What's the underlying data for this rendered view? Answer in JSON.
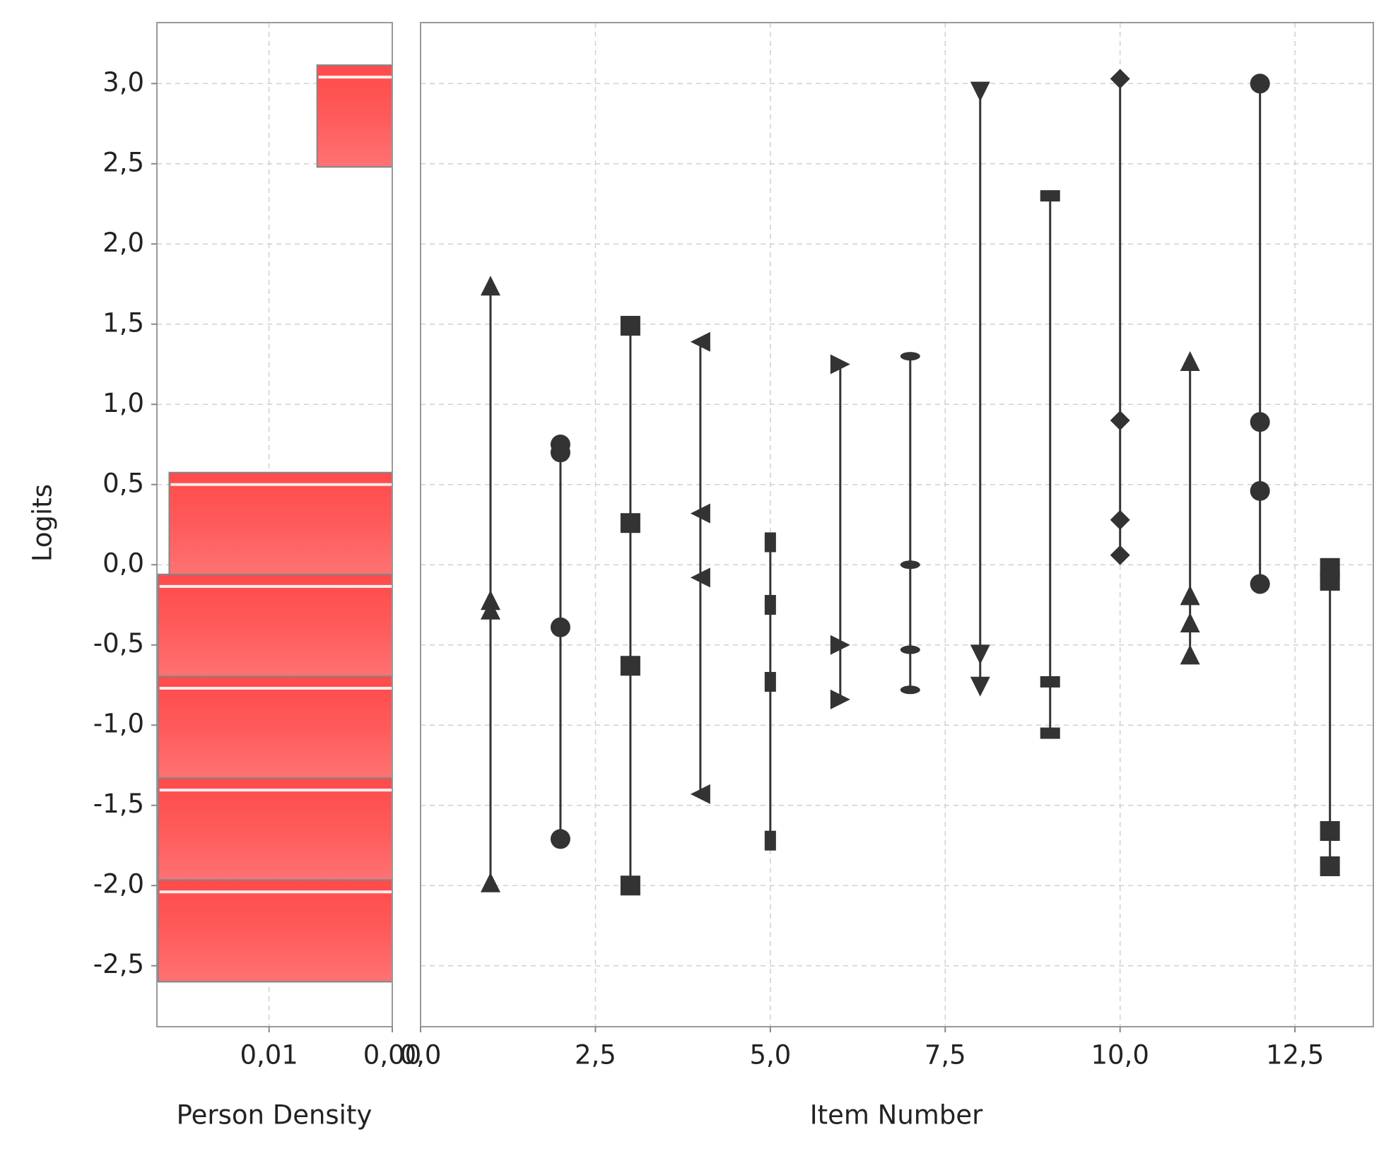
{
  "chart_data": [
    {
      "type": "histogram",
      "orientation": "horizontal",
      "xlabel": "Person Density",
      "ylabel": "Logits",
      "bins": [
        -2.6,
        -1.965,
        -1.33,
        -0.695,
        -0.06,
        0.575,
        1.21,
        1.845,
        2.48,
        3.115
      ],
      "values": [
        0.019,
        0.019,
        0.019,
        0.019,
        0.0181,
        0,
        0,
        0,
        0.0061
      ],
      "color": "#ff5555",
      "xlim": [
        0.0191,
        0
      ],
      "xticks": [
        {
          "value": 0.01,
          "label": "0,01"
        },
        {
          "value": 0,
          "label": "0,00"
        }
      ],
      "ylim": [
        -2.88,
        3.38
      ],
      "yticks": [
        {
          "value": -2.5,
          "label": "-2,5"
        },
        {
          "value": -2,
          "label": "-2,0"
        },
        {
          "value": -1.5,
          "label": "-1,5"
        },
        {
          "value": -1,
          "label": "-1,0"
        },
        {
          "value": -0.5,
          "label": "-0,5"
        },
        {
          "value": 0,
          "label": "0,0"
        },
        {
          "value": 0.5,
          "label": "0,5"
        },
        {
          "value": 1,
          "label": "1,0"
        },
        {
          "value": 1.5,
          "label": "1,5"
        },
        {
          "value": 2,
          "label": "2,0"
        },
        {
          "value": 2.5,
          "label": "2,5"
        },
        {
          "value": 3,
          "label": "3,0"
        }
      ],
      "grid": true
    },
    {
      "type": "range-dot",
      "xlabel": "Item Number",
      "color": "#333333",
      "xlim": [
        0,
        13.62
      ],
      "xticks": [
        {
          "value": 0,
          "label": "0,0"
        },
        {
          "value": 2.5,
          "label": "2,5"
        },
        {
          "value": 5,
          "label": "5,0"
        },
        {
          "value": 7.5,
          "label": "7,5"
        },
        {
          "value": 10,
          "label": "10,0"
        },
        {
          "value": 12.5,
          "label": "12,5"
        }
      ],
      "ylim": [
        -2.88,
        3.38
      ],
      "yticks": [
        -2.5,
        -2,
        -1.5,
        -1,
        -0.5,
        0,
        0.5,
        1,
        1.5,
        2,
        2.5,
        3
      ],
      "grid": true,
      "series": [
        {
          "x": 1,
          "marker": "triangle-up",
          "values": [
            1.74,
            -0.22,
            -0.28,
            -1.98
          ]
        },
        {
          "x": 2,
          "marker": "circle",
          "values": [
            0.75,
            0.7,
            -0.39,
            -1.71
          ]
        },
        {
          "x": 3,
          "marker": "square",
          "values": [
            1.49,
            0.26,
            -0.63,
            -2.0
          ]
        },
        {
          "x": 4,
          "marker": "triangle-left",
          "values": [
            1.39,
            0.32,
            -0.08,
            -1.43
          ]
        },
        {
          "x": 5,
          "marker": "square-narrow",
          "values": [
            0.14,
            -0.25,
            -0.73,
            -1.72
          ]
        },
        {
          "x": 6,
          "marker": "triangle-right",
          "values": [
            1.25,
            -0.5,
            -0.84
          ]
        },
        {
          "x": 7,
          "marker": "ellipse",
          "values": [
            1.3,
            0.0,
            -0.53,
            -0.78
          ]
        },
        {
          "x": 8,
          "marker": "triangle-down",
          "values": [
            2.95,
            -0.56,
            -0.76
          ]
        },
        {
          "x": 9,
          "marker": "square-flat",
          "values": [
            2.3,
            -0.73,
            -1.05
          ]
        },
        {
          "x": 10,
          "marker": "diamond",
          "values": [
            3.03,
            0.9,
            0.28,
            0.06
          ]
        },
        {
          "x": 11,
          "marker": "triangle-up",
          "values": [
            1.27,
            -0.19,
            -0.36,
            -0.56
          ]
        },
        {
          "x": 12,
          "marker": "circle",
          "values": [
            3.0,
            0.89,
            0.46,
            -0.12
          ]
        },
        {
          "x": 13,
          "marker": "square",
          "values": [
            -0.02,
            -0.1,
            -1.66,
            -1.88
          ]
        }
      ]
    }
  ]
}
